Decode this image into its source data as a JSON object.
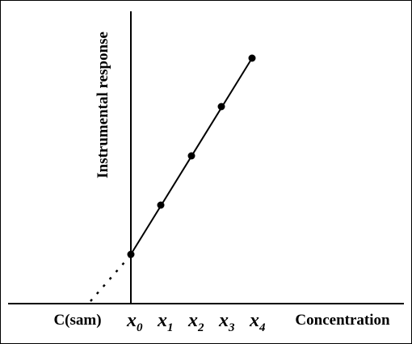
{
  "diagram": {
    "y_axis_label": "Instrumental response",
    "x_axis_label": "Concentration",
    "sample_label": "C(sam)",
    "x_labels": [
      {
        "symbol": "x",
        "subscript": "0"
      },
      {
        "symbol": "x",
        "subscript": "1"
      },
      {
        "symbol": "x",
        "subscript": "2"
      },
      {
        "symbol": "x",
        "subscript": "3"
      },
      {
        "symbol": "x",
        "subscript": "4"
      }
    ]
  }
}
